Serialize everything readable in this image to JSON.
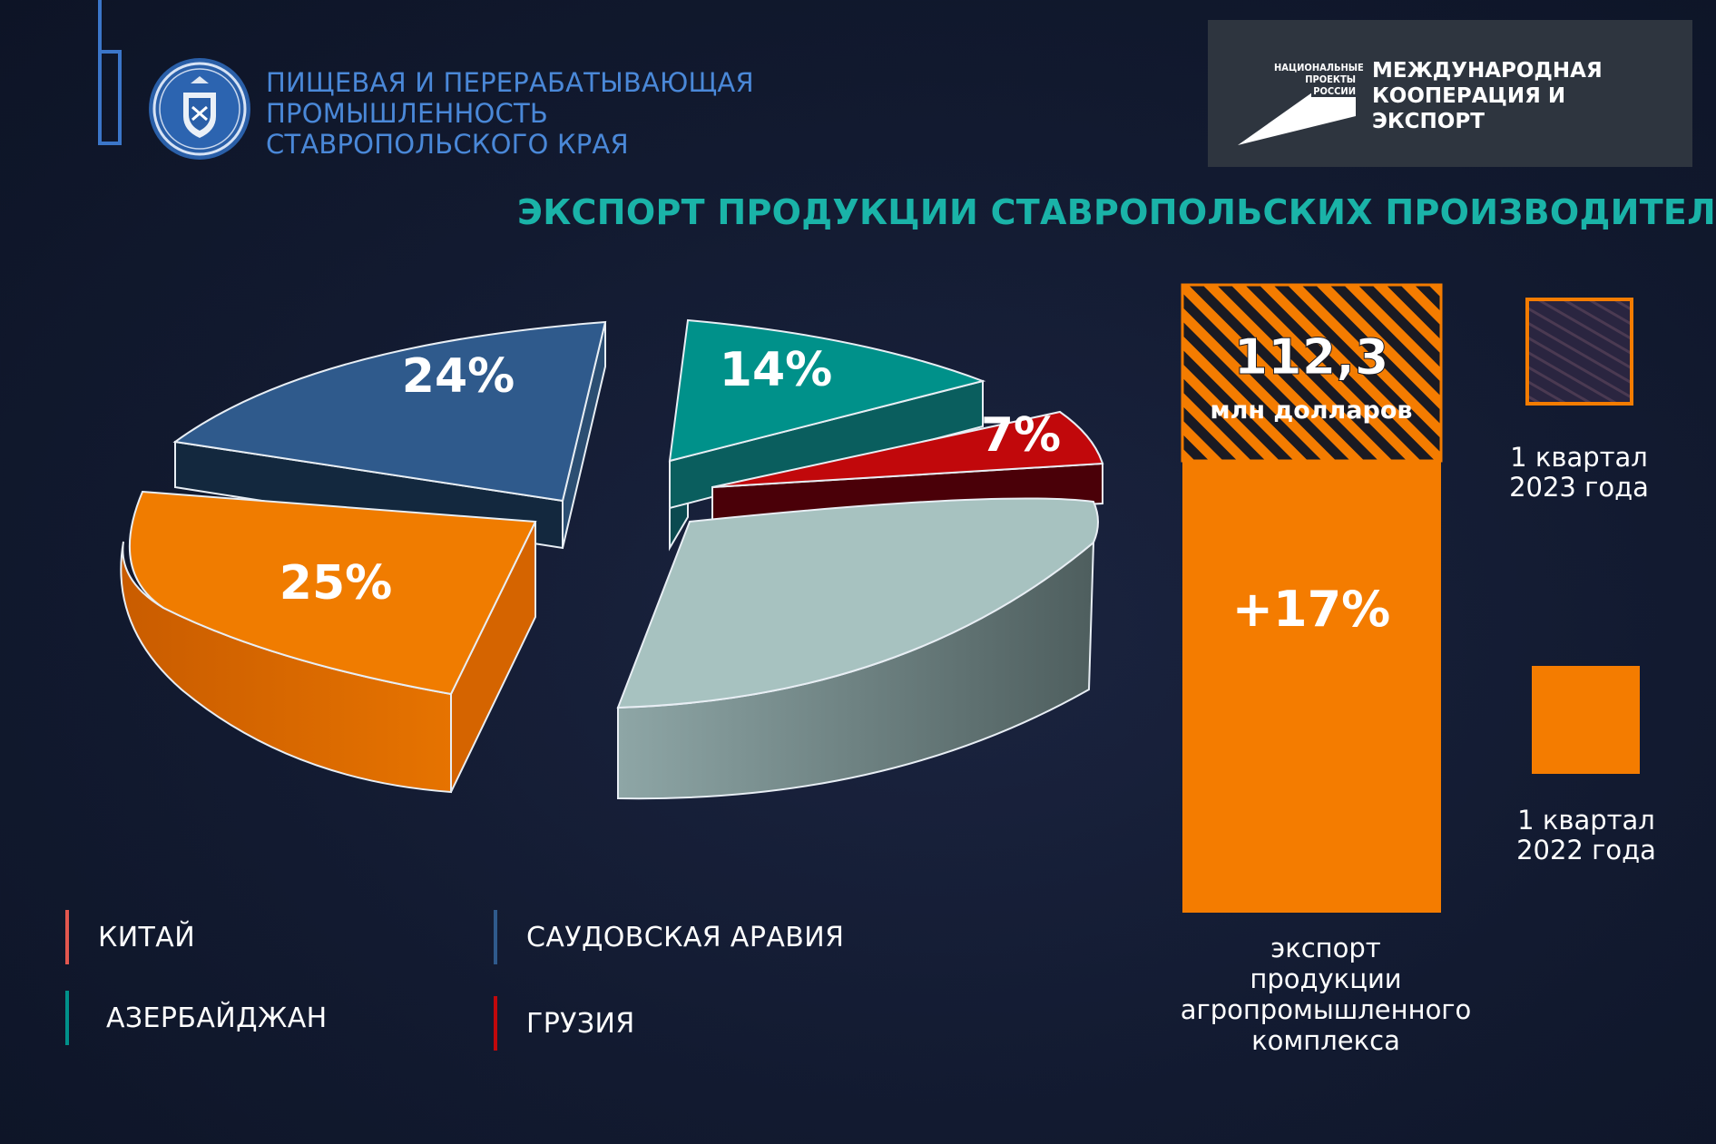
{
  "header": {
    "title_lines": [
      "ПИЩЕВАЯ И ПЕРЕРАБАТЫВАЮЩАЯ",
      "ПРОМЫШЛЕННОСТЬ",
      "СТАВРОПОЛЬСКОГО КРАЯ"
    ],
    "logo": "stavropol-coat-of-arms",
    "project_small_lines": [
      "НАЦИОНАЛЬНЫЕ",
      "ПРОЕКТЫ",
      "РОССИИ"
    ],
    "project_title_lines": [
      "МЕЖДУНАРОДНАЯ",
      "КООПЕРАЦИЯ И ЭКСПОРТ"
    ]
  },
  "page_title": "ЭКСПОРТ ПРОДУКЦИИ СТАВРОПОЛЬСКИХ ПРОИЗВОДИТЕЛЕЙ",
  "chart_data": [
    {
      "type": "pie",
      "style": "3d-exploded",
      "slices": [
        {
          "label": "КИТАЙ",
          "display": "25%",
          "value": 25,
          "color": "#f07c00"
        },
        {
          "label": "САУДОВСКАЯ АРАВИЯ",
          "display": "24%",
          "value": 24,
          "color": "#2f5a8c"
        },
        {
          "label": "АЗЕРБАЙДЖАН",
          "display": "14%",
          "value": 14,
          "color": "#00918a"
        },
        {
          "label": "ГРУЗИЯ",
          "display": "7%",
          "value": 7,
          "color": "#c1080b"
        },
        {
          "label": "",
          "display": "",
          "value": 30,
          "color": "#a7c2c0"
        }
      ]
    },
    {
      "type": "bar",
      "style": "stacked",
      "category": "экспорт продукции агропромышленного комплекса",
      "unit": "млн долларов",
      "total_label": "112,3",
      "growth_label": "+17%",
      "segments": [
        {
          "name": "1 квартал 2022 года",
          "color": "#f47c00",
          "pattern": "solid"
        },
        {
          "name": "1 квартал 2023 года",
          "color": "#f47c00",
          "pattern": "hatched"
        }
      ]
    }
  ],
  "legend": [
    {
      "label": "КИТАЙ",
      "color": "#e2574f"
    },
    {
      "label": "САУДОВСКАЯ АРАВИЯ",
      "color": "#2f5a8c"
    },
    {
      "label": "АЗЕРБАЙДЖАН",
      "color": "#00918a"
    },
    {
      "label": "ГРУЗИЯ",
      "color": "#c1080b"
    }
  ],
  "bar_caption_lines": [
    "экспорт",
    "продукции",
    "агропромышленного",
    "комплекса"
  ],
  "bar_key": [
    {
      "lines": [
        "1 квартал",
        "2023 года"
      ],
      "pattern": "hatched"
    },
    {
      "lines": [
        "1 квартал",
        "2022 года"
      ],
      "pattern": "solid"
    }
  ]
}
